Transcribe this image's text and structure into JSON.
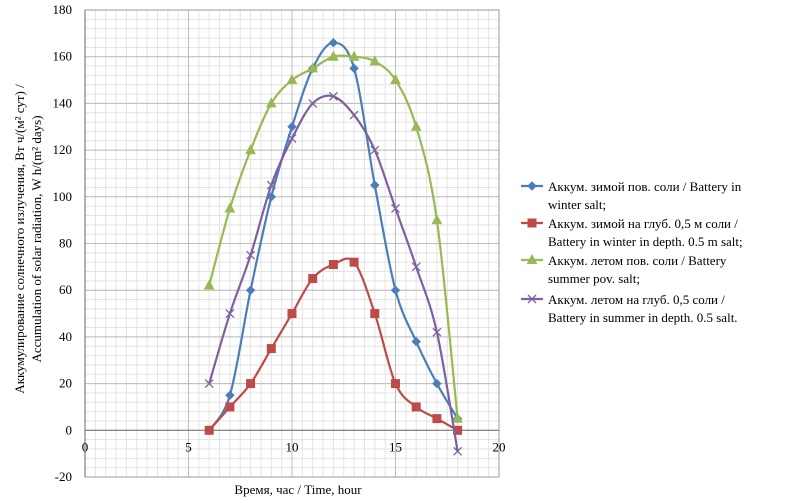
{
  "chart_data": {
    "type": "scatter",
    "xlabel": "Время, час / Time, hour",
    "ylabel_lines": [
      "Аккумулирование солнечного излучения, Вт ч/(м² сут) /",
      "Accumulation of solar radiation, W h/(m² days)"
    ],
    "xlim": [
      0,
      20
    ],
    "ylim": [
      -20,
      180
    ],
    "x_ticks": [
      0,
      5,
      10,
      15,
      20
    ],
    "y_ticks": [
      -20,
      0,
      20,
      40,
      60,
      80,
      100,
      120,
      140,
      160,
      180
    ],
    "grid": true,
    "legend_position": "right",
    "series": [
      {
        "name": "Аккум. зимой пов. соли / Battery in winter salt;",
        "legend_lines": [
          "Аккум. зимой пов. соли / Battery in",
          "winter salt;"
        ],
        "color": "#4a7ebb",
        "marker": "diamond",
        "points": [
          [
            6,
            0
          ],
          [
            7,
            15
          ],
          [
            8,
            60
          ],
          [
            9,
            100
          ],
          [
            10,
            130
          ],
          [
            11,
            155
          ],
          [
            12,
            166
          ],
          [
            13,
            155
          ],
          [
            14,
            105
          ],
          [
            15,
            60
          ],
          [
            16,
            38
          ],
          [
            17,
            20
          ],
          [
            18,
            5
          ]
        ]
      },
      {
        "name": "Аккум. зимой на глуб. 0,5 м соли / Battery in winter in depth. 0.5 m salt;",
        "legend_lines": [
          "Аккум. зимой на глуб. 0,5 м соли /",
          "Battery in winter in depth. 0.5 m salt;"
        ],
        "color": "#be4b48",
        "marker": "square",
        "points": [
          [
            6,
            0
          ],
          [
            7,
            10
          ],
          [
            8,
            20
          ],
          [
            9,
            35
          ],
          [
            10,
            50
          ],
          [
            11,
            65
          ],
          [
            12,
            71
          ],
          [
            13,
            72
          ],
          [
            14,
            50
          ],
          [
            15,
            20
          ],
          [
            16,
            10
          ],
          [
            17,
            5
          ],
          [
            18,
            0
          ]
        ]
      },
      {
        "name": "Аккум. летом пов. соли / Battery summer pov. salt;",
        "legend_lines": [
          "Аккум. летом пов. соли / Battery",
          "summer pov. salt;"
        ],
        "color": "#98b954",
        "marker": "triangle",
        "points": [
          [
            6,
            62
          ],
          [
            7,
            95
          ],
          [
            8,
            120
          ],
          [
            9,
            140
          ],
          [
            10,
            150
          ],
          [
            11,
            155
          ],
          [
            12,
            160
          ],
          [
            13,
            160
          ],
          [
            14,
            158
          ],
          [
            15,
            150
          ],
          [
            16,
            130
          ],
          [
            17,
            90
          ],
          [
            18,
            5
          ]
        ]
      },
      {
        "name": "Аккум. летом на глуб. 0,5 соли / Battery in summer in depth. 0.5 salt.",
        "legend_lines": [
          "Аккум. летом на глуб. 0,5 соли /",
          "Battery in summer in depth. 0.5 salt."
        ],
        "color": "#7d60a0",
        "marker": "x",
        "points": [
          [
            6,
            20
          ],
          [
            7,
            50
          ],
          [
            8,
            75
          ],
          [
            9,
            105
          ],
          [
            10,
            125
          ],
          [
            11,
            140
          ],
          [
            12,
            143
          ],
          [
            13,
            135
          ],
          [
            14,
            120
          ],
          [
            15,
            95
          ],
          [
            16,
            70
          ],
          [
            17,
            42
          ],
          [
            18,
            -9
          ]
        ]
      }
    ]
  }
}
